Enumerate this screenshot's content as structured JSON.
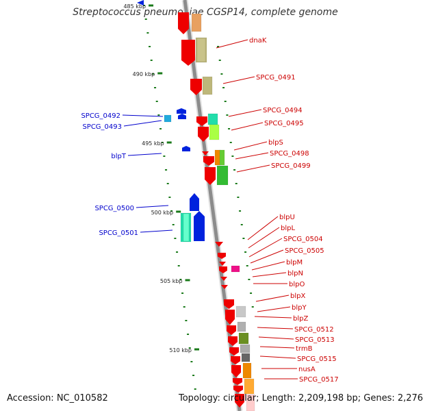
{
  "title": "Streptococcus pneumoniae CGSP14, complete genome",
  "accession": "Accession: NC_010582",
  "summary": "Topology: circular; Length: 2,209,198 bp; Genes: 2,276",
  "colors": {
    "backbone": "#8c8c8c",
    "tick": "#1a7a1a",
    "label_plus": "#0000cc",
    "label_minus": "#cc0000"
  },
  "scale_labels": [
    "485 kbp",
    "490 kbp",
    "495 kbp",
    "500 kbp",
    "505 kbp",
    "510 kbp"
  ],
  "gene_labels_left": [
    "SPCG_0492",
    "SPCG_0493",
    "blpT",
    "SPCG_0500",
    "SPCG_0501"
  ],
  "gene_labels_right": [
    "dnaK",
    "SPCG_0491",
    "SPCG_0494",
    "SPCG_0495",
    "blpS",
    "SPCG_0498",
    "SPCG_0499",
    "blpU",
    "blpL",
    "SPCG_0504",
    "SPCG_0505",
    "blpM",
    "blpN",
    "blpO",
    "blpX",
    "blpY",
    "blpZ",
    "SPCG_0512",
    "SPCG_0513",
    "trmB",
    "SPCG_0515",
    "nusA",
    "SPCG_0517"
  ]
}
